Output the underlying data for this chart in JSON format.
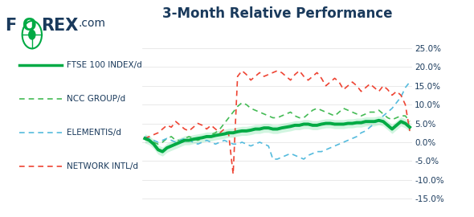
{
  "title": "3-Month Relative Performance",
  "title_color": "#1a3a5c",
  "title_fontsize": 12,
  "background_color": "#ffffff",
  "yticks": [
    -15.0,
    -10.0,
    -5.0,
    0.0,
    5.0,
    10.0,
    15.0,
    20.0,
    25.0
  ],
  "ylim": [
    -17,
    28
  ],
  "legend": [
    {
      "label": "FTSE 100 INDEX/d",
      "color": "#00aa44",
      "style": "solid",
      "lw": 2.5
    },
    {
      "label": "NCC GROUP/d",
      "color": "#44bb55",
      "style": "dashed",
      "lw": 1.2
    },
    {
      "label": "ELEMENTIS/d",
      "color": "#55bbdd",
      "style": "dashed",
      "lw": 1.2
    },
    {
      "label": "NETWORK INTL/d",
      "color": "#ee4433",
      "style": "dashed",
      "lw": 1.2
    }
  ],
  "ftse": [
    1.0,
    0.5,
    -0.5,
    -2.0,
    -2.5,
    -1.5,
    -1.0,
    -0.5,
    0.0,
    0.5,
    0.5,
    0.8,
    1.0,
    1.2,
    1.5,
    1.5,
    1.8,
    2.0,
    2.2,
    2.5,
    2.5,
    2.8,
    3.0,
    3.0,
    3.2,
    3.5,
    3.5,
    3.8,
    3.8,
    3.5,
    3.5,
    3.8,
    4.0,
    4.2,
    4.5,
    4.5,
    4.8,
    4.8,
    4.5,
    4.5,
    4.8,
    5.0,
    5.0,
    4.8,
    4.8,
    4.8,
    5.0,
    5.0,
    5.2,
    5.2,
    5.5,
    5.5,
    5.5,
    5.8,
    5.5,
    4.5,
    3.5,
    4.5,
    5.5,
    5.0,
    4.0
  ],
  "ncc": [
    1.0,
    0.5,
    0.0,
    -0.5,
    0.0,
    1.0,
    1.5,
    0.5,
    0.5,
    1.0,
    1.5,
    1.0,
    0.5,
    1.0,
    1.5,
    2.0,
    2.5,
    3.5,
    5.0,
    6.5,
    8.0,
    9.5,
    10.5,
    10.0,
    9.0,
    8.5,
    8.0,
    7.5,
    7.0,
    6.5,
    6.5,
    7.0,
    7.5,
    8.0,
    7.0,
    6.5,
    6.5,
    7.5,
    8.5,
    9.0,
    8.5,
    8.0,
    7.5,
    7.0,
    8.0,
    9.0,
    8.5,
    8.0,
    7.5,
    7.0,
    7.5,
    8.0,
    8.0,
    8.5,
    7.5,
    6.5,
    6.0,
    6.5,
    7.0,
    7.0,
    5.5
  ],
  "elementis": [
    1.5,
    1.0,
    0.5,
    0.0,
    0.5,
    1.0,
    0.5,
    0.0,
    0.5,
    1.0,
    0.5,
    0.0,
    -0.5,
    0.0,
    0.5,
    0.0,
    -0.5,
    0.0,
    0.5,
    0.0,
    -0.5,
    -0.5,
    0.0,
    -0.5,
    -1.0,
    -0.5,
    0.0,
    -0.5,
    -1.0,
    -4.5,
    -4.5,
    -4.0,
    -3.5,
    -3.0,
    -3.5,
    -4.0,
    -4.5,
    -3.5,
    -3.0,
    -2.5,
    -2.5,
    -2.0,
    -1.5,
    -1.0,
    -0.5,
    0.0,
    0.5,
    1.0,
    1.5,
    2.5,
    3.0,
    4.0,
    5.0,
    6.0,
    7.0,
    8.0,
    9.0,
    10.5,
    12.0,
    14.5,
    16.0
  ],
  "network": [
    1.0,
    1.5,
    2.0,
    2.5,
    3.5,
    4.5,
    4.0,
    5.5,
    4.5,
    3.5,
    3.0,
    4.0,
    5.0,
    4.5,
    3.5,
    4.5,
    3.5,
    2.5,
    3.5,
    2.0,
    -8.5,
    17.5,
    19.0,
    18.0,
    16.5,
    17.5,
    18.5,
    17.5,
    18.0,
    18.5,
    19.0,
    18.5,
    17.5,
    16.5,
    18.0,
    19.0,
    17.5,
    16.5,
    17.5,
    18.5,
    17.0,
    15.0,
    16.0,
    17.0,
    16.0,
    14.0,
    15.0,
    16.0,
    15.0,
    13.5,
    14.5,
    15.5,
    14.5,
    13.5,
    15.0,
    14.0,
    12.5,
    13.5,
    12.5,
    10.0,
    3.0
  ]
}
